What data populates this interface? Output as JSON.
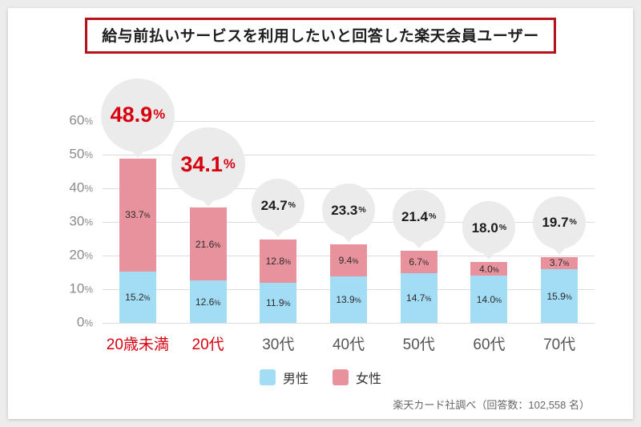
{
  "title": "給与前払いサービスを利用したいと回答した楽天会員ユーザー",
  "footer": "楽天カード社調べ（回答数：102,558 名）",
  "legend": {
    "male": "男性",
    "female": "女性"
  },
  "colors": {
    "male": "#a3dcf5",
    "female": "#e8929e",
    "accent_red": "#d7000f",
    "title_border": "#b5121b",
    "bubble": "#ebebeb",
    "gridline": "#dcdcdc"
  },
  "chart_data": {
    "type": "bar",
    "stacked": true,
    "title": "給与前払いサービスを利用したいと回答した楽天会員ユーザー",
    "categories": [
      "20歳未満",
      "20代",
      "30代",
      "40代",
      "50代",
      "60代",
      "70代"
    ],
    "series": [
      {
        "name": "男性",
        "values": [
          15.2,
          12.6,
          11.9,
          13.9,
          14.7,
          14.0,
          15.9
        ]
      },
      {
        "name": "女性",
        "values": [
          33.7,
          21.6,
          12.8,
          9.4,
          6.7,
          4.0,
          3.7
        ]
      }
    ],
    "totals": [
      48.9,
      34.1,
      24.7,
      23.3,
      21.4,
      18.0,
      19.7
    ],
    "highlight_categories": [
      0,
      1
    ],
    "ylim": [
      0,
      60
    ],
    "ytick_step": 10,
    "ytick_suffix": "%",
    "legend_position": "bottom",
    "grid": true
  }
}
